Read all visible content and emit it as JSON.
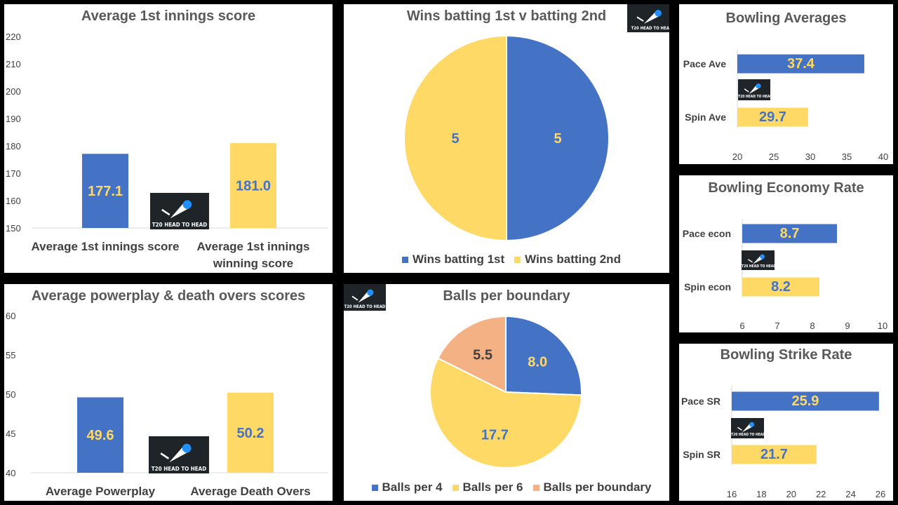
{
  "logo_text": "T20 HEAD TO HEAD",
  "colors": {
    "blue": "#4472c4",
    "gold": "#ffd966",
    "peach": "#f4b183",
    "label_on_blue": "#ffd966",
    "label_on_gold": "#4472c4"
  },
  "chart_data": [
    {
      "id": "first_innings",
      "type": "bar",
      "title": "Average 1st innings score",
      "categories": [
        "Average 1st innings score",
        "Average 1st innings winning score"
      ],
      "category_lines": [
        [
          "Average 1st innings score"
        ],
        [
          "Average 1st innings",
          "winning score"
        ]
      ],
      "values": [
        177.1,
        181.0
      ],
      "data_labels": [
        "177.1",
        "181.0"
      ],
      "ylim": [
        150,
        220
      ],
      "yticks": [
        150,
        160,
        170,
        180,
        190,
        200,
        210,
        220
      ],
      "grid": false
    },
    {
      "id": "powerplay_death",
      "type": "bar",
      "title": "Average powerplay & death overs scores",
      "categories": [
        "Average Powerplay",
        "Average Death Overs"
      ],
      "category_lines": [
        [
          "Average Powerplay"
        ],
        [
          "Average Death Overs"
        ]
      ],
      "values": [
        49.6,
        50.2
      ],
      "data_labels": [
        "49.6",
        "50.2"
      ],
      "ylim": [
        40,
        60
      ],
      "yticks": [
        40,
        45,
        50,
        55,
        60
      ],
      "grid": false
    },
    {
      "id": "wins",
      "type": "pie",
      "title": "Wins batting 1st v batting 2nd",
      "labels": [
        "Wins batting 1st",
        "Wins batting 2nd"
      ],
      "values": [
        5,
        5
      ],
      "data_labels": [
        "5",
        "5"
      ],
      "legend_position": "bottom"
    },
    {
      "id": "boundary",
      "type": "pie",
      "title": "Balls per boundary",
      "labels": [
        "Balls per 4",
        "Balls per 6",
        "Balls per boundary"
      ],
      "values": [
        8.0,
        17.7,
        5.5
      ],
      "data_labels": [
        "8.0",
        "17.7",
        "5.5"
      ],
      "legend_position": "bottom"
    },
    {
      "id": "averages",
      "type": "bar",
      "orientation": "horizontal",
      "title": "Bowling Averages",
      "categories": [
        "Pace Ave",
        "Spin Ave"
      ],
      "values": [
        37.4,
        29.7
      ],
      "data_labels": [
        "37.4",
        "29.7"
      ],
      "xlim": [
        20,
        40
      ],
      "xticks": [
        20,
        25,
        30,
        35,
        40
      ]
    },
    {
      "id": "economy",
      "type": "bar",
      "orientation": "horizontal",
      "title": "Bowling Economy Rate",
      "categories": [
        "Pace econ",
        "Spin econ"
      ],
      "values": [
        8.7,
        8.2
      ],
      "data_labels": [
        "8.7",
        "8.2"
      ],
      "xlim": [
        6,
        10
      ],
      "xticks": [
        6,
        7,
        8,
        9,
        10
      ]
    },
    {
      "id": "strike",
      "type": "bar",
      "orientation": "horizontal",
      "title": "Bowling Strike Rate",
      "categories": [
        "Pace SR",
        "Spin SR"
      ],
      "values": [
        25.9,
        21.7
      ],
      "data_labels": [
        "25.9",
        "21.7"
      ],
      "xlim": [
        16,
        26
      ],
      "xticks": [
        16,
        18,
        20,
        22,
        24,
        26
      ]
    }
  ]
}
